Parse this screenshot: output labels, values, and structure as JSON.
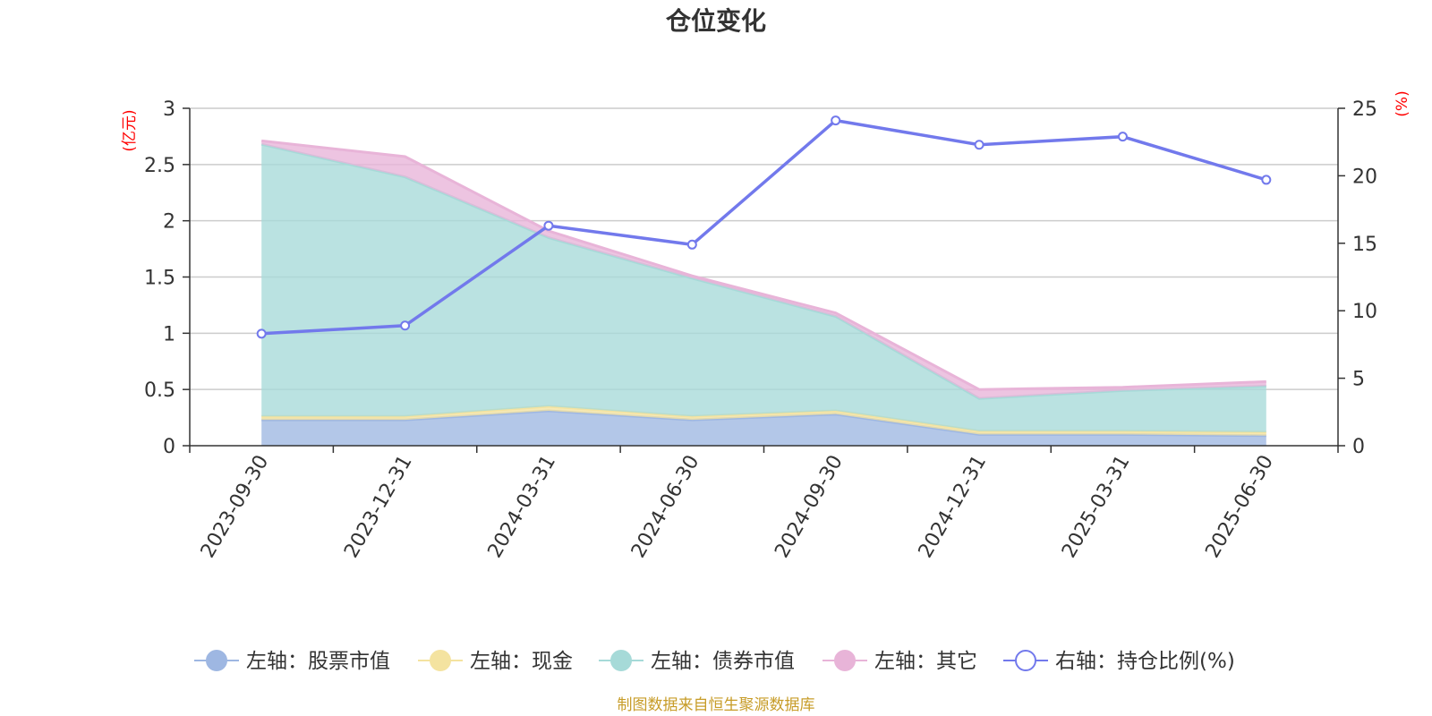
{
  "chart_data": {
    "type": "area",
    "title": "仓位变化",
    "x": [
      "2023-09-30",
      "2023-12-31",
      "2024-03-31",
      "2024-06-30",
      "2024-09-30",
      "2024-12-31",
      "2025-03-31",
      "2025-06-30"
    ],
    "left_axis": {
      "unit_label": "(亿元)",
      "ylim": [
        0,
        3
      ],
      "ticks": [
        "0",
        "0.5",
        "1",
        "1.5",
        "2",
        "2.5",
        "3"
      ]
    },
    "right_axis": {
      "unit_label": "(%)",
      "ylim": [
        0,
        25
      ],
      "ticks": [
        "0",
        "5",
        "10",
        "15",
        "20",
        "25"
      ]
    },
    "stacked_series": [
      {
        "name": "左轴：股票市值",
        "color": "#9eb7e2",
        "values": [
          0.23,
          0.23,
          0.31,
          0.23,
          0.28,
          0.1,
          0.1,
          0.09
        ]
      },
      {
        "name": "左轴：现金",
        "color": "#f4e3a0",
        "values": [
          0.03,
          0.03,
          0.04,
          0.03,
          0.03,
          0.03,
          0.03,
          0.03
        ]
      },
      {
        "name": "左轴：债券市值",
        "color": "#a6dad8",
        "values": [
          2.42,
          2.13,
          1.5,
          1.23,
          0.84,
          0.29,
          0.36,
          0.41
        ]
      },
      {
        "name": "左轴：其它",
        "color": "#e8b4d8",
        "values": [
          0.03,
          0.18,
          0.06,
          0.02,
          0.03,
          0.08,
          0.03,
          0.04
        ]
      }
    ],
    "line_series": {
      "name": "右轴：持仓比例(%)",
      "color": "#7279ec",
      "values": [
        8.3,
        8.9,
        16.3,
        14.9,
        24.1,
        22.3,
        22.9,
        19.7
      ]
    },
    "grid": true,
    "legend_position": "bottom"
  },
  "source_note": "制图数据来自恒生聚源数据库"
}
